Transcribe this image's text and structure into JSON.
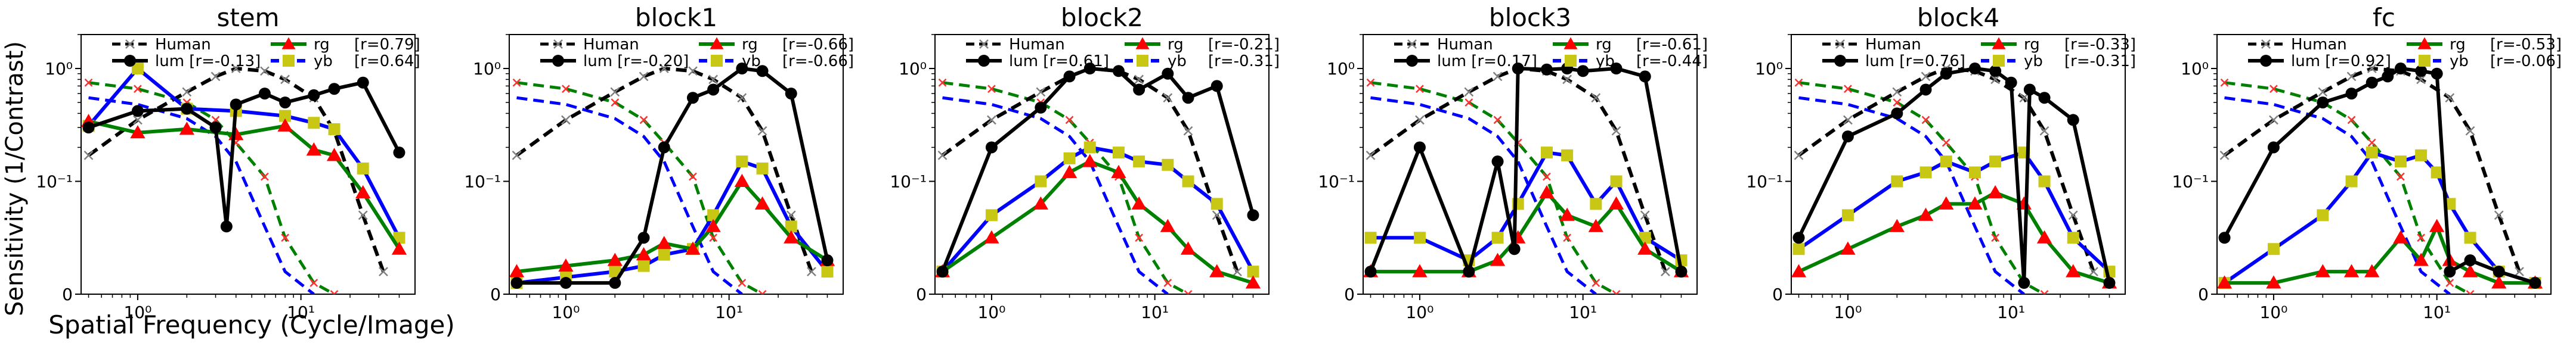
{
  "figure": {
    "ylabel": "Sensitivity (1/Contrast)",
    "xlabel": "Spatial Frequency (Cycle/Image)"
  },
  "legend_labels": {
    "human": "Human",
    "rg": "rg",
    "yb": "yb"
  },
  "colors": {
    "human": "#000000",
    "human_marker": "#7f7f7f",
    "lum": "#000000",
    "rg_line": "#008000",
    "rg_marker": "#ff0000",
    "yb_line": "#0000ff",
    "yb_marker": "#c8c814",
    "human_rg": "#008000",
    "human_rg_marker": "#ff3030",
    "human_yb": "#0000ff"
  },
  "chart_data": [
    {
      "type": "line",
      "title": "stem",
      "xscale": "log",
      "yscale": "symlog",
      "xlim": [
        0.45,
        50
      ],
      "ylim": [
        0,
        2
      ],
      "xticks": [
        {
          "v": 1,
          "label": "10⁰"
        },
        {
          "v": 10,
          "label": "10¹"
        }
      ],
      "yticks": [
        {
          "v": 0,
          "label": "0"
        },
        {
          "v": 0.1,
          "label": "10⁻¹"
        },
        {
          "v": 1,
          "label": "10⁰"
        }
      ],
      "legend": {
        "lum": "lum [r=-0.13]",
        "rg": "[r=0.79]",
        "yb": "[r=0.64]"
      },
      "human": {
        "x": [
          0.5,
          1,
          2,
          3,
          4,
          6,
          8,
          12,
          16,
          24,
          32
        ],
        "y": [
          0.17,
          0.35,
          0.62,
          0.85,
          1.0,
          0.95,
          0.8,
          0.55,
          0.28,
          0.07,
          0.02
        ]
      },
      "human_rg": {
        "x": [
          0.5,
          1,
          2,
          3,
          4,
          6,
          8,
          12,
          16
        ],
        "y": [
          0.75,
          0.66,
          0.5,
          0.35,
          0.22,
          0.11,
          0.05,
          0.01,
          0.0
        ]
      },
      "human_yb": {
        "x": [
          0.5,
          1,
          2,
          3,
          4,
          6,
          8,
          12
        ],
        "y": [
          0.55,
          0.48,
          0.36,
          0.25,
          0.15,
          0.06,
          0.02,
          0.0
        ]
      },
      "series": [
        {
          "name": "lum",
          "x": [
            0.5,
            1,
            2,
            3,
            3.5,
            4,
            6,
            8,
            12,
            16,
            24,
            40
          ],
          "y": [
            0.3,
            0.42,
            0.44,
            0.3,
            0.06,
            0.48,
            0.6,
            0.5,
            0.58,
            0.66,
            0.75,
            0.18
          ]
        },
        {
          "name": "rg",
          "x": [
            0.5,
            1,
            2,
            4,
            8,
            12,
            16,
            24,
            40
          ],
          "y": [
            0.34,
            0.27,
            0.29,
            0.26,
            0.31,
            0.19,
            0.17,
            0.09,
            0.04
          ]
        },
        {
          "name": "yb",
          "x": [
            0.5,
            1,
            2,
            4,
            8,
            12,
            16,
            24,
            40
          ],
          "y": [
            0.31,
            1.0,
            0.44,
            0.42,
            0.38,
            0.33,
            0.29,
            0.13,
            0.05
          ]
        }
      ]
    },
    {
      "type": "line",
      "title": "block1",
      "xscale": "log",
      "yscale": "symlog",
      "xlim": [
        0.45,
        50
      ],
      "ylim": [
        0,
        2
      ],
      "xticks": [
        {
          "v": 1,
          "label": "10⁰"
        },
        {
          "v": 10,
          "label": "10¹"
        }
      ],
      "yticks": [
        {
          "v": 0,
          "label": "0"
        },
        {
          "v": 0.1,
          "label": "10⁻¹"
        },
        {
          "v": 1,
          "label": "10⁰"
        }
      ],
      "legend": {
        "lum": "lum [r=-0.20]",
        "rg": "[r=-0.66]",
        "yb": "[r=-0.66]"
      },
      "human": {
        "x": [
          0.5,
          1,
          2,
          3,
          4,
          6,
          8,
          12,
          16,
          24,
          32
        ],
        "y": [
          0.17,
          0.35,
          0.62,
          0.85,
          1.0,
          0.95,
          0.8,
          0.55,
          0.28,
          0.07,
          0.02
        ]
      },
      "human_rg": {
        "x": [
          0.5,
          1,
          2,
          3,
          4,
          6,
          8,
          12,
          16
        ],
        "y": [
          0.75,
          0.66,
          0.5,
          0.35,
          0.22,
          0.11,
          0.05,
          0.01,
          0.0
        ]
      },
      "human_yb": {
        "x": [
          0.5,
          1,
          2,
          3,
          4,
          6,
          8,
          12
        ],
        "y": [
          0.55,
          0.48,
          0.36,
          0.25,
          0.15,
          0.06,
          0.02,
          0.0
        ]
      },
      "series": [
        {
          "name": "lum",
          "x": [
            0.5,
            1,
            2,
            3,
            4,
            6,
            8,
            12,
            16,
            24,
            40
          ],
          "y": [
            0.01,
            0.01,
            0.01,
            0.05,
            0.2,
            0.55,
            0.65,
            1.0,
            0.95,
            0.6,
            0.03
          ]
        },
        {
          "name": "rg",
          "x": [
            0.5,
            1,
            2,
            3,
            4,
            6,
            8,
            12,
            16,
            24,
            40
          ],
          "y": [
            0.02,
            0.025,
            0.03,
            0.035,
            0.045,
            0.04,
            0.06,
            0.1,
            0.08,
            0.05,
            0.03
          ]
        },
        {
          "name": "yb",
          "x": [
            0.5,
            1,
            2,
            3,
            4,
            6,
            8,
            12,
            16,
            24,
            40
          ],
          "y": [
            0.01,
            0.015,
            0.02,
            0.025,
            0.035,
            0.04,
            0.07,
            0.15,
            0.13,
            0.06,
            0.02
          ]
        }
      ]
    },
    {
      "type": "line",
      "title": "block2",
      "xscale": "log",
      "yscale": "symlog",
      "xlim": [
        0.45,
        50
      ],
      "ylim": [
        0,
        2
      ],
      "xticks": [
        {
          "v": 1,
          "label": "10⁰"
        },
        {
          "v": 10,
          "label": "10¹"
        }
      ],
      "yticks": [
        {
          "v": 0,
          "label": "0"
        },
        {
          "v": 0.1,
          "label": "10⁻¹"
        },
        {
          "v": 1,
          "label": "10⁰"
        }
      ],
      "legend": {
        "lum": "lum [r=0.61]",
        "rg": "[r=-0.21]",
        "yb": "[r=-0.31]"
      },
      "human": {
        "x": [
          0.5,
          1,
          2,
          3,
          4,
          6,
          8,
          12,
          16,
          24,
          32
        ],
        "y": [
          0.17,
          0.35,
          0.62,
          0.85,
          1.0,
          0.95,
          0.8,
          0.55,
          0.28,
          0.07,
          0.02
        ]
      },
      "human_rg": {
        "x": [
          0.5,
          1,
          2,
          3,
          4,
          6,
          8,
          12,
          16
        ],
        "y": [
          0.75,
          0.66,
          0.5,
          0.35,
          0.22,
          0.11,
          0.05,
          0.01,
          0.0
        ]
      },
      "human_yb": {
        "x": [
          0.5,
          1,
          2,
          3,
          4,
          6,
          8,
          12
        ],
        "y": [
          0.55,
          0.48,
          0.36,
          0.25,
          0.15,
          0.06,
          0.02,
          0.0
        ]
      },
      "series": [
        {
          "name": "lum",
          "x": [
            0.5,
            1,
            2,
            3,
            4,
            6,
            8,
            12,
            16,
            24,
            40
          ],
          "y": [
            0.02,
            0.2,
            0.45,
            0.85,
            1.0,
            0.95,
            0.65,
            0.9,
            0.55,
            0.7,
            0.07
          ]
        },
        {
          "name": "rg",
          "x": [
            0.5,
            1,
            2,
            3,
            4,
            6,
            8,
            12,
            16,
            24,
            40
          ],
          "y": [
            0.02,
            0.05,
            0.08,
            0.12,
            0.15,
            0.12,
            0.08,
            0.06,
            0.04,
            0.02,
            0.01
          ]
        },
        {
          "name": "yb",
          "x": [
            0.5,
            1,
            2,
            3,
            4,
            6,
            8,
            12,
            16,
            24,
            40
          ],
          "y": [
            0.02,
            0.07,
            0.1,
            0.16,
            0.2,
            0.18,
            0.15,
            0.14,
            0.1,
            0.08,
            0.02
          ]
        }
      ]
    },
    {
      "type": "line",
      "title": "block3",
      "xscale": "log",
      "yscale": "symlog",
      "xlim": [
        0.45,
        50
      ],
      "ylim": [
        0,
        2
      ],
      "xticks": [
        {
          "v": 1,
          "label": "10⁰"
        },
        {
          "v": 10,
          "label": "10¹"
        }
      ],
      "yticks": [
        {
          "v": 0,
          "label": "0"
        },
        {
          "v": 0.1,
          "label": "10⁻¹"
        },
        {
          "v": 1,
          "label": "10⁰"
        }
      ],
      "legend": {
        "lum": "lum [r=0.17]",
        "rg": "[r=-0.61]",
        "yb": "[r=-0.44]"
      },
      "human": {
        "x": [
          0.5,
          1,
          2,
          3,
          4,
          6,
          8,
          12,
          16,
          24,
          32
        ],
        "y": [
          0.17,
          0.35,
          0.62,
          0.85,
          1.0,
          0.95,
          0.8,
          0.55,
          0.28,
          0.07,
          0.02
        ]
      },
      "human_rg": {
        "x": [
          0.5,
          1,
          2,
          3,
          4,
          6,
          8,
          12,
          16
        ],
        "y": [
          0.75,
          0.66,
          0.5,
          0.35,
          0.22,
          0.11,
          0.05,
          0.01,
          0.0
        ]
      },
      "human_yb": {
        "x": [
          0.5,
          1,
          2,
          3,
          4,
          6,
          8,
          12
        ],
        "y": [
          0.55,
          0.48,
          0.36,
          0.25,
          0.15,
          0.06,
          0.02,
          0.0
        ]
      },
      "series": [
        {
          "name": "lum",
          "x": [
            0.5,
            1,
            2,
            3,
            3.8,
            4,
            6,
            8,
            10,
            16,
            24,
            40
          ],
          "y": [
            0.02,
            0.2,
            0.02,
            0.15,
            0.04,
            1.0,
            0.98,
            1.0,
            0.95,
            1.0,
            0.85,
            0.02
          ]
        },
        {
          "name": "rg",
          "x": [
            0.5,
            1,
            2,
            3,
            4,
            6,
            8,
            12,
            16,
            24,
            40
          ],
          "y": [
            0.02,
            0.02,
            0.02,
            0.03,
            0.05,
            0.09,
            0.07,
            0.06,
            0.08,
            0.04,
            0.02
          ]
        },
        {
          "name": "yb",
          "x": [
            0.5,
            1,
            2,
            3,
            4,
            6,
            8,
            12,
            16,
            24,
            40
          ],
          "y": [
            0.05,
            0.05,
            0.03,
            0.05,
            0.08,
            0.18,
            0.17,
            0.08,
            0.1,
            0.05,
            0.03
          ]
        }
      ]
    },
    {
      "type": "line",
      "title": "block4",
      "xscale": "log",
      "yscale": "symlog",
      "xlim": [
        0.45,
        50
      ],
      "ylim": [
        0,
        2
      ],
      "xticks": [
        {
          "v": 1,
          "label": "10⁰"
        },
        {
          "v": 10,
          "label": "10¹"
        }
      ],
      "yticks": [
        {
          "v": 0,
          "label": "0"
        },
        {
          "v": 0.1,
          "label": "10⁻¹"
        },
        {
          "v": 1,
          "label": "10⁰"
        }
      ],
      "legend": {
        "lum": "lum [r=0.76]",
        "rg": "[r=-0.33]",
        "yb": "[r=-0.31]"
      },
      "human": {
        "x": [
          0.5,
          1,
          2,
          3,
          4,
          6,
          8,
          12,
          16,
          24,
          32
        ],
        "y": [
          0.17,
          0.35,
          0.62,
          0.85,
          1.0,
          0.95,
          0.8,
          0.55,
          0.28,
          0.07,
          0.02
        ]
      },
      "human_rg": {
        "x": [
          0.5,
          1,
          2,
          3,
          4,
          6,
          8,
          12,
          16
        ],
        "y": [
          0.75,
          0.66,
          0.5,
          0.35,
          0.22,
          0.11,
          0.05,
          0.01,
          0.0
        ]
      },
      "human_yb": {
        "x": [
          0.5,
          1,
          2,
          3,
          4,
          6,
          8,
          12
        ],
        "y": [
          0.55,
          0.48,
          0.36,
          0.25,
          0.15,
          0.06,
          0.02,
          0.0
        ]
      },
      "series": [
        {
          "name": "lum",
          "x": [
            0.5,
            1,
            2,
            3,
            4,
            6,
            8,
            10,
            12,
            13,
            16,
            24,
            40
          ],
          "y": [
            0.05,
            0.25,
            0.4,
            0.65,
            0.9,
            1.0,
            0.95,
            0.75,
            0.01,
            0.65,
            0.55,
            0.35,
            0.01
          ]
        },
        {
          "name": "rg",
          "x": [
            0.5,
            1,
            2,
            3,
            4,
            6,
            8,
            12,
            16,
            24,
            40
          ],
          "y": [
            0.02,
            0.04,
            0.06,
            0.07,
            0.08,
            0.08,
            0.09,
            0.08,
            0.05,
            0.02,
            0.01
          ]
        },
        {
          "name": "yb",
          "x": [
            0.5,
            1,
            2,
            3,
            4,
            6,
            8,
            12,
            16,
            24,
            40
          ],
          "y": [
            0.04,
            0.07,
            0.1,
            0.12,
            0.15,
            0.12,
            0.15,
            0.18,
            0.1,
            0.05,
            0.02
          ]
        }
      ]
    },
    {
      "type": "line",
      "title": "fc",
      "xscale": "log",
      "yscale": "symlog",
      "xlim": [
        0.45,
        50
      ],
      "ylim": [
        0,
        2
      ],
      "xticks": [
        {
          "v": 1,
          "label": "10⁰"
        },
        {
          "v": 10,
          "label": "10¹"
        }
      ],
      "yticks": [
        {
          "v": 0,
          "label": "0"
        },
        {
          "v": 0.1,
          "label": "10⁻¹"
        },
        {
          "v": 1,
          "label": "10⁰"
        }
      ],
      "legend": {
        "lum": "lum [r=0.92]",
        "rg": "[r=-0.53]",
        "yb": "[r=-0.06]"
      },
      "human": {
        "x": [
          0.5,
          1,
          2,
          3,
          4,
          6,
          8,
          12,
          16,
          24,
          32
        ],
        "y": [
          0.17,
          0.35,
          0.62,
          0.85,
          1.0,
          0.95,
          0.8,
          0.55,
          0.28,
          0.07,
          0.02
        ]
      },
      "human_rg": {
        "x": [
          0.5,
          1,
          2,
          3,
          4,
          6,
          8,
          12,
          16
        ],
        "y": [
          0.75,
          0.66,
          0.5,
          0.35,
          0.22,
          0.11,
          0.05,
          0.01,
          0.0
        ]
      },
      "human_yb": {
        "x": [
          0.5,
          1,
          2,
          3,
          4,
          6,
          8,
          12
        ],
        "y": [
          0.55,
          0.48,
          0.36,
          0.25,
          0.15,
          0.06,
          0.02,
          0.0
        ]
      },
      "series": [
        {
          "name": "lum",
          "x": [
            0.5,
            1,
            2,
            3,
            4,
            5,
            6,
            8,
            10,
            12,
            16,
            24,
            40
          ],
          "y": [
            0.05,
            0.2,
            0.5,
            0.6,
            0.75,
            0.85,
            1.0,
            0.95,
            0.9,
            0.02,
            0.03,
            0.02,
            0.01
          ]
        },
        {
          "name": "rg",
          "x": [
            0.5,
            1,
            2,
            3,
            4,
            6,
            8,
            10,
            12,
            16,
            24,
            40
          ],
          "y": [
            0.01,
            0.01,
            0.02,
            0.02,
            0.02,
            0.05,
            0.03,
            0.06,
            0.03,
            0.02,
            0.01,
            0.01
          ]
        },
        {
          "name": "yb",
          "x": [
            0.5,
            1,
            2,
            3,
            4,
            6,
            8,
            10,
            12,
            16,
            24,
            40
          ],
          "y": [
            0.01,
            0.04,
            0.07,
            0.1,
            0.18,
            0.15,
            0.17,
            0.12,
            0.08,
            0.05,
            0.02,
            0.01
          ]
        }
      ]
    }
  ]
}
